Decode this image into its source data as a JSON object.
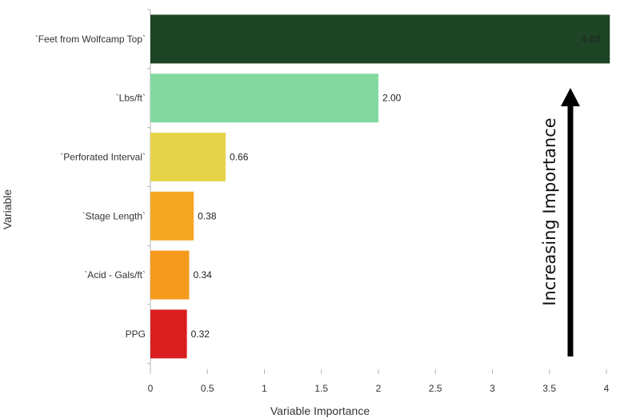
{
  "chart_data": {
    "type": "bar",
    "orientation": "horizontal",
    "title": "",
    "xlabel": "Variable Importance",
    "ylabel": "Variable",
    "xlim": [
      0,
      4.1
    ],
    "xticks": [
      0,
      0.5,
      1,
      1.5,
      2,
      2.5,
      3,
      3.5,
      4
    ],
    "xtick_labels": [
      "0",
      "0.5",
      "1",
      "1.5",
      "2",
      "2.5",
      "3",
      "3.5",
      "4"
    ],
    "grid": false,
    "categories": [
      "`Feet from Wolfcamp Top`",
      "`Lbs/ft`",
      "`Perforated Interval`",
      "`Stage Length`",
      "`Acid - Gals/ft`",
      "PPG"
    ],
    "values": [
      4.03,
      2.0,
      0.66,
      0.38,
      0.34,
      0.32
    ],
    "value_labels": [
      "4.03",
      "2.00",
      "0.66",
      "0.38",
      "0.34",
      "0.32"
    ],
    "colors": [
      "#1d4425",
      "#84d9a1",
      "#e6d54a",
      "#f5a623",
      "#f59a1c",
      "#d81e1e"
    ],
    "value_label_colors": [
      "#ffffff",
      "#222222",
      "#222222",
      "#222222",
      "#222222",
      "#222222"
    ],
    "annotation": {
      "text": "Increasing Importance",
      "direction": "up",
      "color": "#000000"
    }
  }
}
